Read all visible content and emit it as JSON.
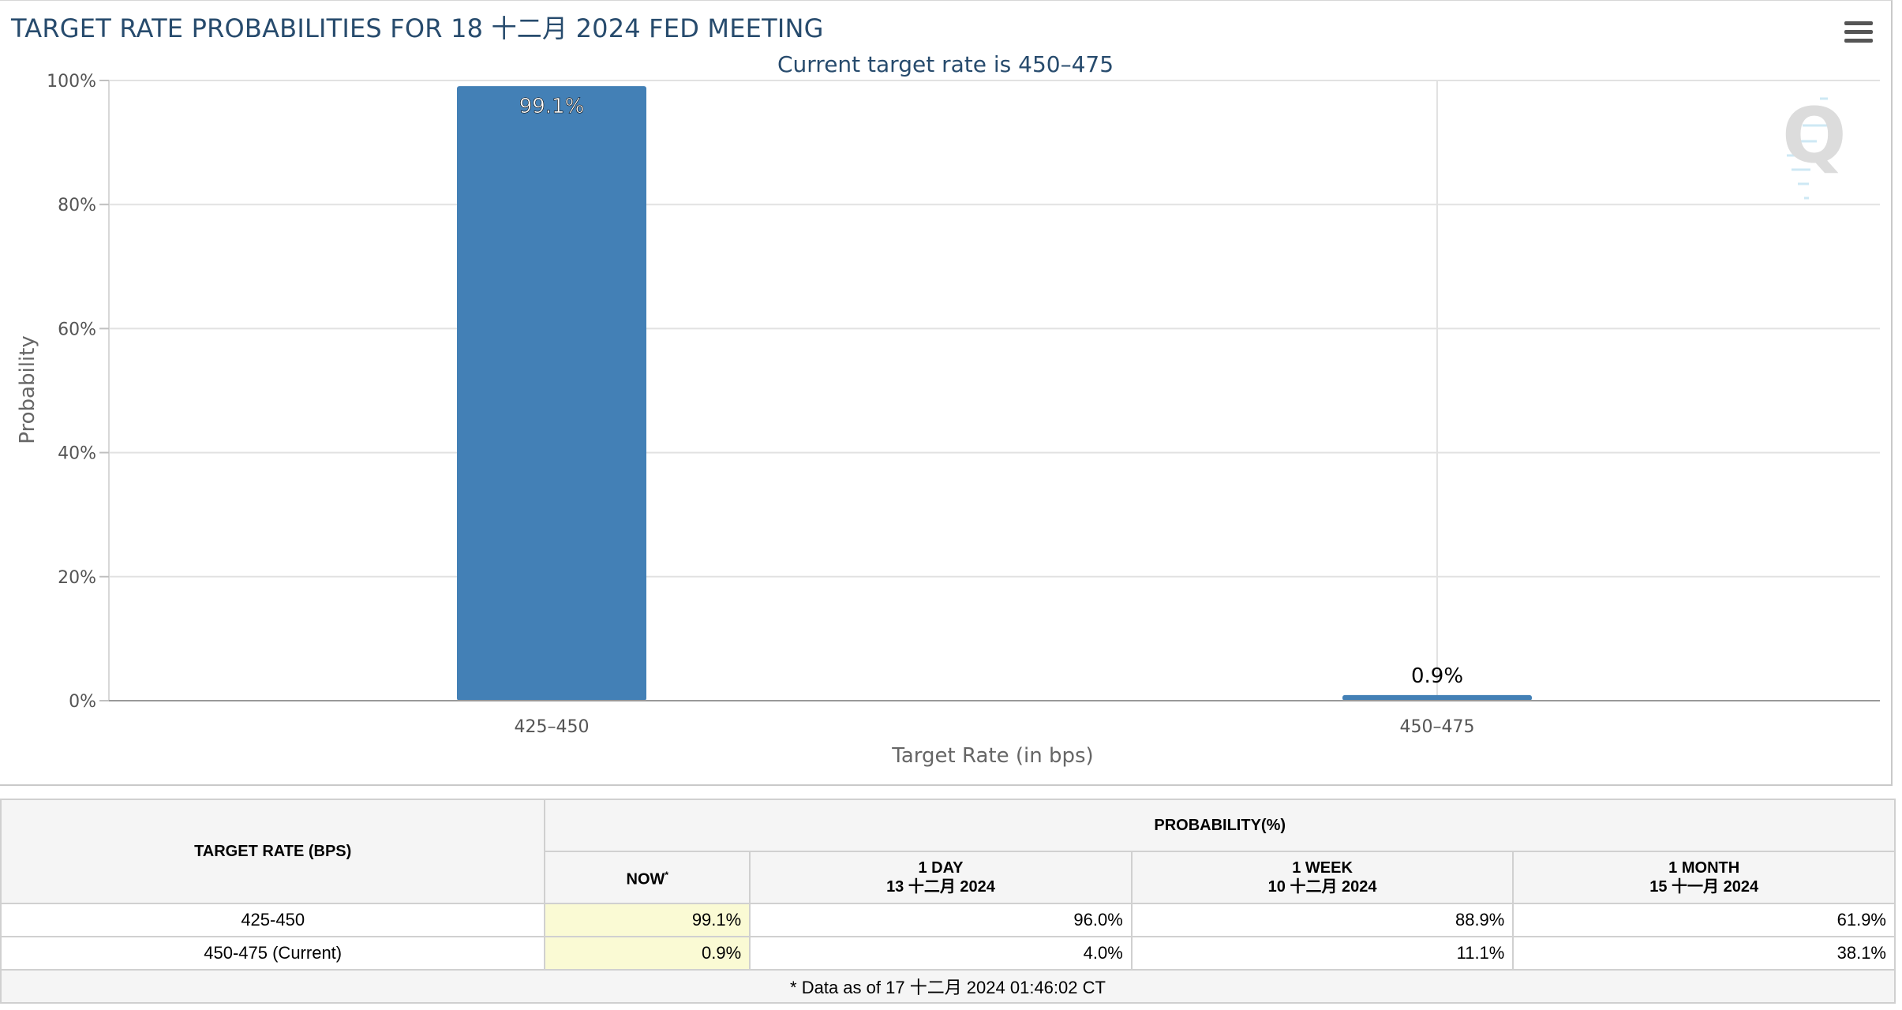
{
  "chart_data": {
    "type": "bar",
    "title": "TARGET RATE PROBABILITIES FOR 18 十二月 2024 FED MEETING",
    "subtitle": "Current target rate is 450–475",
    "categories": [
      "425–450",
      "450–475"
    ],
    "values": [
      99.1,
      0.9
    ],
    "data_labels": [
      "99.1%",
      "0.9%"
    ],
    "xlabel": "Target Rate (in bps)",
    "ylabel": "Probability",
    "ylim": [
      0,
      100
    ],
    "yticks": [
      "0%",
      "20%",
      "40%",
      "60%",
      "80%",
      "100%"
    ],
    "ytick_values": [
      0,
      20,
      40,
      60,
      80,
      100
    ],
    "grid": true,
    "bar_color": "#4380b6"
  },
  "watermark": {
    "letter": "Q"
  },
  "menu": {
    "icon": "hamburger-menu-icon"
  },
  "table": {
    "header_rate": "TARGET RATE (BPS)",
    "header_prob": "PROBABILITY(%)",
    "col_now": "NOW",
    "col_now_mark": "*",
    "col_1day": "1 DAY",
    "col_1day_date": "13 十二月 2024",
    "col_1week": "1 WEEK",
    "col_1week_date": "10 十二月 2024",
    "col_1month": "1 MONTH",
    "col_1month_date": "15 十一月 2024",
    "rows": [
      {
        "rate": "425-450",
        "now": "99.1%",
        "day": "96.0%",
        "week": "88.9%",
        "month": "61.9%"
      },
      {
        "rate": "450-475 (Current)",
        "now": "0.9%",
        "day": "4.0%",
        "week": "11.1%",
        "month": "38.1%"
      }
    ],
    "footnote": "* Data as of 17 十二月 2024 01:46:02 CT"
  }
}
